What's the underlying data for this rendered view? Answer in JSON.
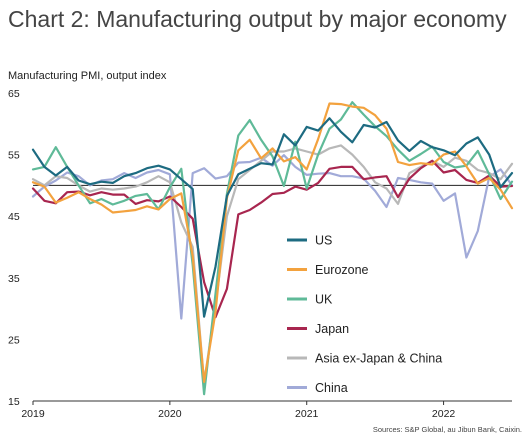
{
  "title": "Chart 2: Manufacturing output by major economy",
  "subtitle": "Manufacturing PMI, output index",
  "source": "Sources: S&P Global, au Jibun Bank, Caixin.",
  "chart_data": {
    "type": "line",
    "ylabel": "Manufacturing PMI, output index",
    "ylim": [
      15,
      65
    ],
    "yticks": [
      15,
      25,
      35,
      45,
      55,
      65
    ],
    "reference_line": 50,
    "xlim": [
      0,
      42
    ],
    "xticks": [
      {
        "x": 0,
        "label": "2019"
      },
      {
        "x": 12,
        "label": "2020"
      },
      {
        "x": 24,
        "label": "2021"
      },
      {
        "x": 36,
        "label": "2022"
      }
    ],
    "legend_position": "center-right",
    "series": [
      {
        "name": "US",
        "color": "#1d6b81",
        "values": [
          55.8,
          53.0,
          51.6,
          53.0,
          50.8,
          50.2,
          50.6,
          50.4,
          51.5,
          52.0,
          52.8,
          53.2,
          52.6,
          51.0,
          49.4,
          28.7,
          36.8,
          48.3,
          51.8,
          52.7,
          53.6,
          53.4,
          58.3,
          56.5,
          59.5,
          58.9,
          60.9,
          58.7,
          57.0,
          59.8,
          59.4,
          60.3,
          57.3,
          55.6,
          57.2,
          56.2,
          55.7,
          54.9,
          56.8,
          57.8,
          55.0,
          49.7,
          52.0
        ]
      },
      {
        "name": "Eurozone",
        "color": "#f3a23e",
        "values": [
          50.5,
          49.8,
          47.2,
          48.0,
          48.9,
          47.8,
          46.9,
          45.6,
          45.8,
          46.0,
          46.6,
          46.1,
          47.8,
          48.7,
          38.5,
          18.1,
          29.4,
          47.9,
          55.7,
          57.4,
          54.4,
          56.0,
          53.9,
          54.6,
          52.6,
          57.5,
          63.3,
          63.2,
          62.8,
          62.6,
          61.4,
          59.2,
          53.8,
          53.3,
          53.6,
          53.4,
          55.0,
          55.5,
          53.1,
          50.3,
          51.2,
          49.3,
          46.3
        ]
      },
      {
        "name": "UK",
        "color": "#5fba98",
        "values": [
          52.6,
          53.0,
          56.2,
          53.0,
          50.0,
          47.1,
          47.8,
          46.9,
          47.5,
          48.3,
          48.6,
          46.1,
          49.7,
          52.7,
          37.1,
          16.1,
          32.4,
          48.6,
          58.1,
          60.6,
          57.4,
          54.7,
          49.9,
          57.1,
          49.5,
          55.0,
          59.2,
          60.7,
          63.5,
          61.5,
          59.6,
          58.0,
          55.8,
          54.0,
          55.1,
          56.3,
          53.8,
          52.9,
          53.2,
          55.6,
          51.8,
          47.8,
          50.6
        ]
      },
      {
        "name": "Japan",
        "color": "#a8264f",
        "values": [
          49.5,
          47.5,
          47.1,
          48.9,
          49.0,
          48.4,
          48.9,
          48.5,
          48.5,
          47.0,
          47.6,
          47.4,
          48.2,
          46.5,
          44.6,
          34.3,
          28.6,
          33.2,
          45.3,
          46.0,
          47.2,
          48.6,
          48.8,
          49.8,
          49.3,
          50.4,
          52.7,
          53.0,
          53.0,
          51.0,
          51.3,
          51.5,
          48.1,
          51.1,
          52.8,
          54.0,
          52.1,
          52.5,
          50.9,
          50.4,
          51.6,
          49.8,
          49.9
        ]
      },
      {
        "name": "Asia ex-Japan & China",
        "color": "#b8b8b8",
        "values": [
          51.0,
          50.0,
          51.5,
          51.2,
          50.0,
          49.0,
          49.5,
          49.3,
          49.5,
          49.8,
          50.5,
          51.5,
          50.5,
          44.0,
          40.0,
          18.0,
          30.5,
          45.0,
          51.0,
          52.5,
          54.0,
          55.5,
          55.5,
          56.0,
          55.5,
          55.0,
          56.0,
          56.5,
          55.0,
          53.0,
          50.5,
          49.5,
          47.0,
          52.0,
          53.0,
          54.0,
          53.0,
          54.5,
          54.0,
          52.5,
          52.0,
          51.0,
          53.5
        ]
      },
      {
        "name": "China",
        "color": "#a1aad8",
        "values": [
          48.2,
          49.8,
          50.8,
          52.1,
          51.5,
          50.0,
          50.8,
          51.0,
          52.0,
          51.2,
          52.1,
          52.5,
          51.8,
          28.4,
          52.0,
          52.8,
          51.1,
          51.5,
          53.7,
          53.8,
          54.5,
          53.2,
          54.9,
          53.0,
          51.7,
          51.9,
          52.0,
          51.5,
          51.5,
          51.1,
          49.1,
          46.5,
          51.2,
          50.9,
          50.5,
          50.3,
          47.5,
          48.7,
          38.3,
          42.6,
          51.4,
          52.6,
          50.0
        ]
      }
    ]
  }
}
